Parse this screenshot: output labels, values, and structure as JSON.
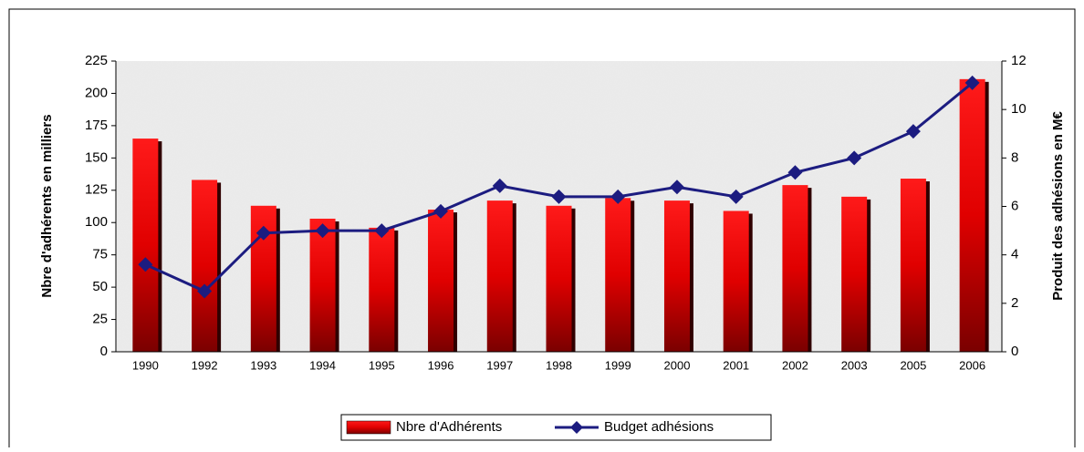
{
  "chart_data": {
    "type": "bar",
    "categories": [
      "1990",
      "1992",
      "1993",
      "1994",
      "1995",
      "1996",
      "1997",
      "1998",
      "1999",
      "2000",
      "2001",
      "2002",
      "2003",
      "2005",
      "2006"
    ],
    "series": [
      {
        "name": "Nbre d'Adhérents",
        "type": "bar",
        "color": "#ff0000",
        "axis": "y",
        "values": [
          165,
          133,
          113,
          103,
          96,
          110,
          117,
          113,
          119,
          117,
          109,
          129,
          120,
          134,
          211
        ]
      },
      {
        "name": "Budget adhésions",
        "type": "line",
        "color": "#1c1c80",
        "axis": "y2",
        "values": [
          3.6,
          2.5,
          4.9,
          5.0,
          5.0,
          5.8,
          6.85,
          6.4,
          6.4,
          6.8,
          6.4,
          7.4,
          8.0,
          9.1,
          11.1
        ]
      }
    ],
    "ylabel": "Nbre d'adhérents en milliers",
    "y2label": "Produit des adhésions en M€",
    "ylim": [
      0,
      225
    ],
    "yticks": [
      0,
      25,
      50,
      75,
      100,
      125,
      150,
      175,
      200,
      225
    ],
    "y2lim": [
      0,
      12
    ],
    "y2ticks": [
      0,
      2,
      4,
      6,
      8,
      10,
      12
    ],
    "legend": "bottom"
  }
}
